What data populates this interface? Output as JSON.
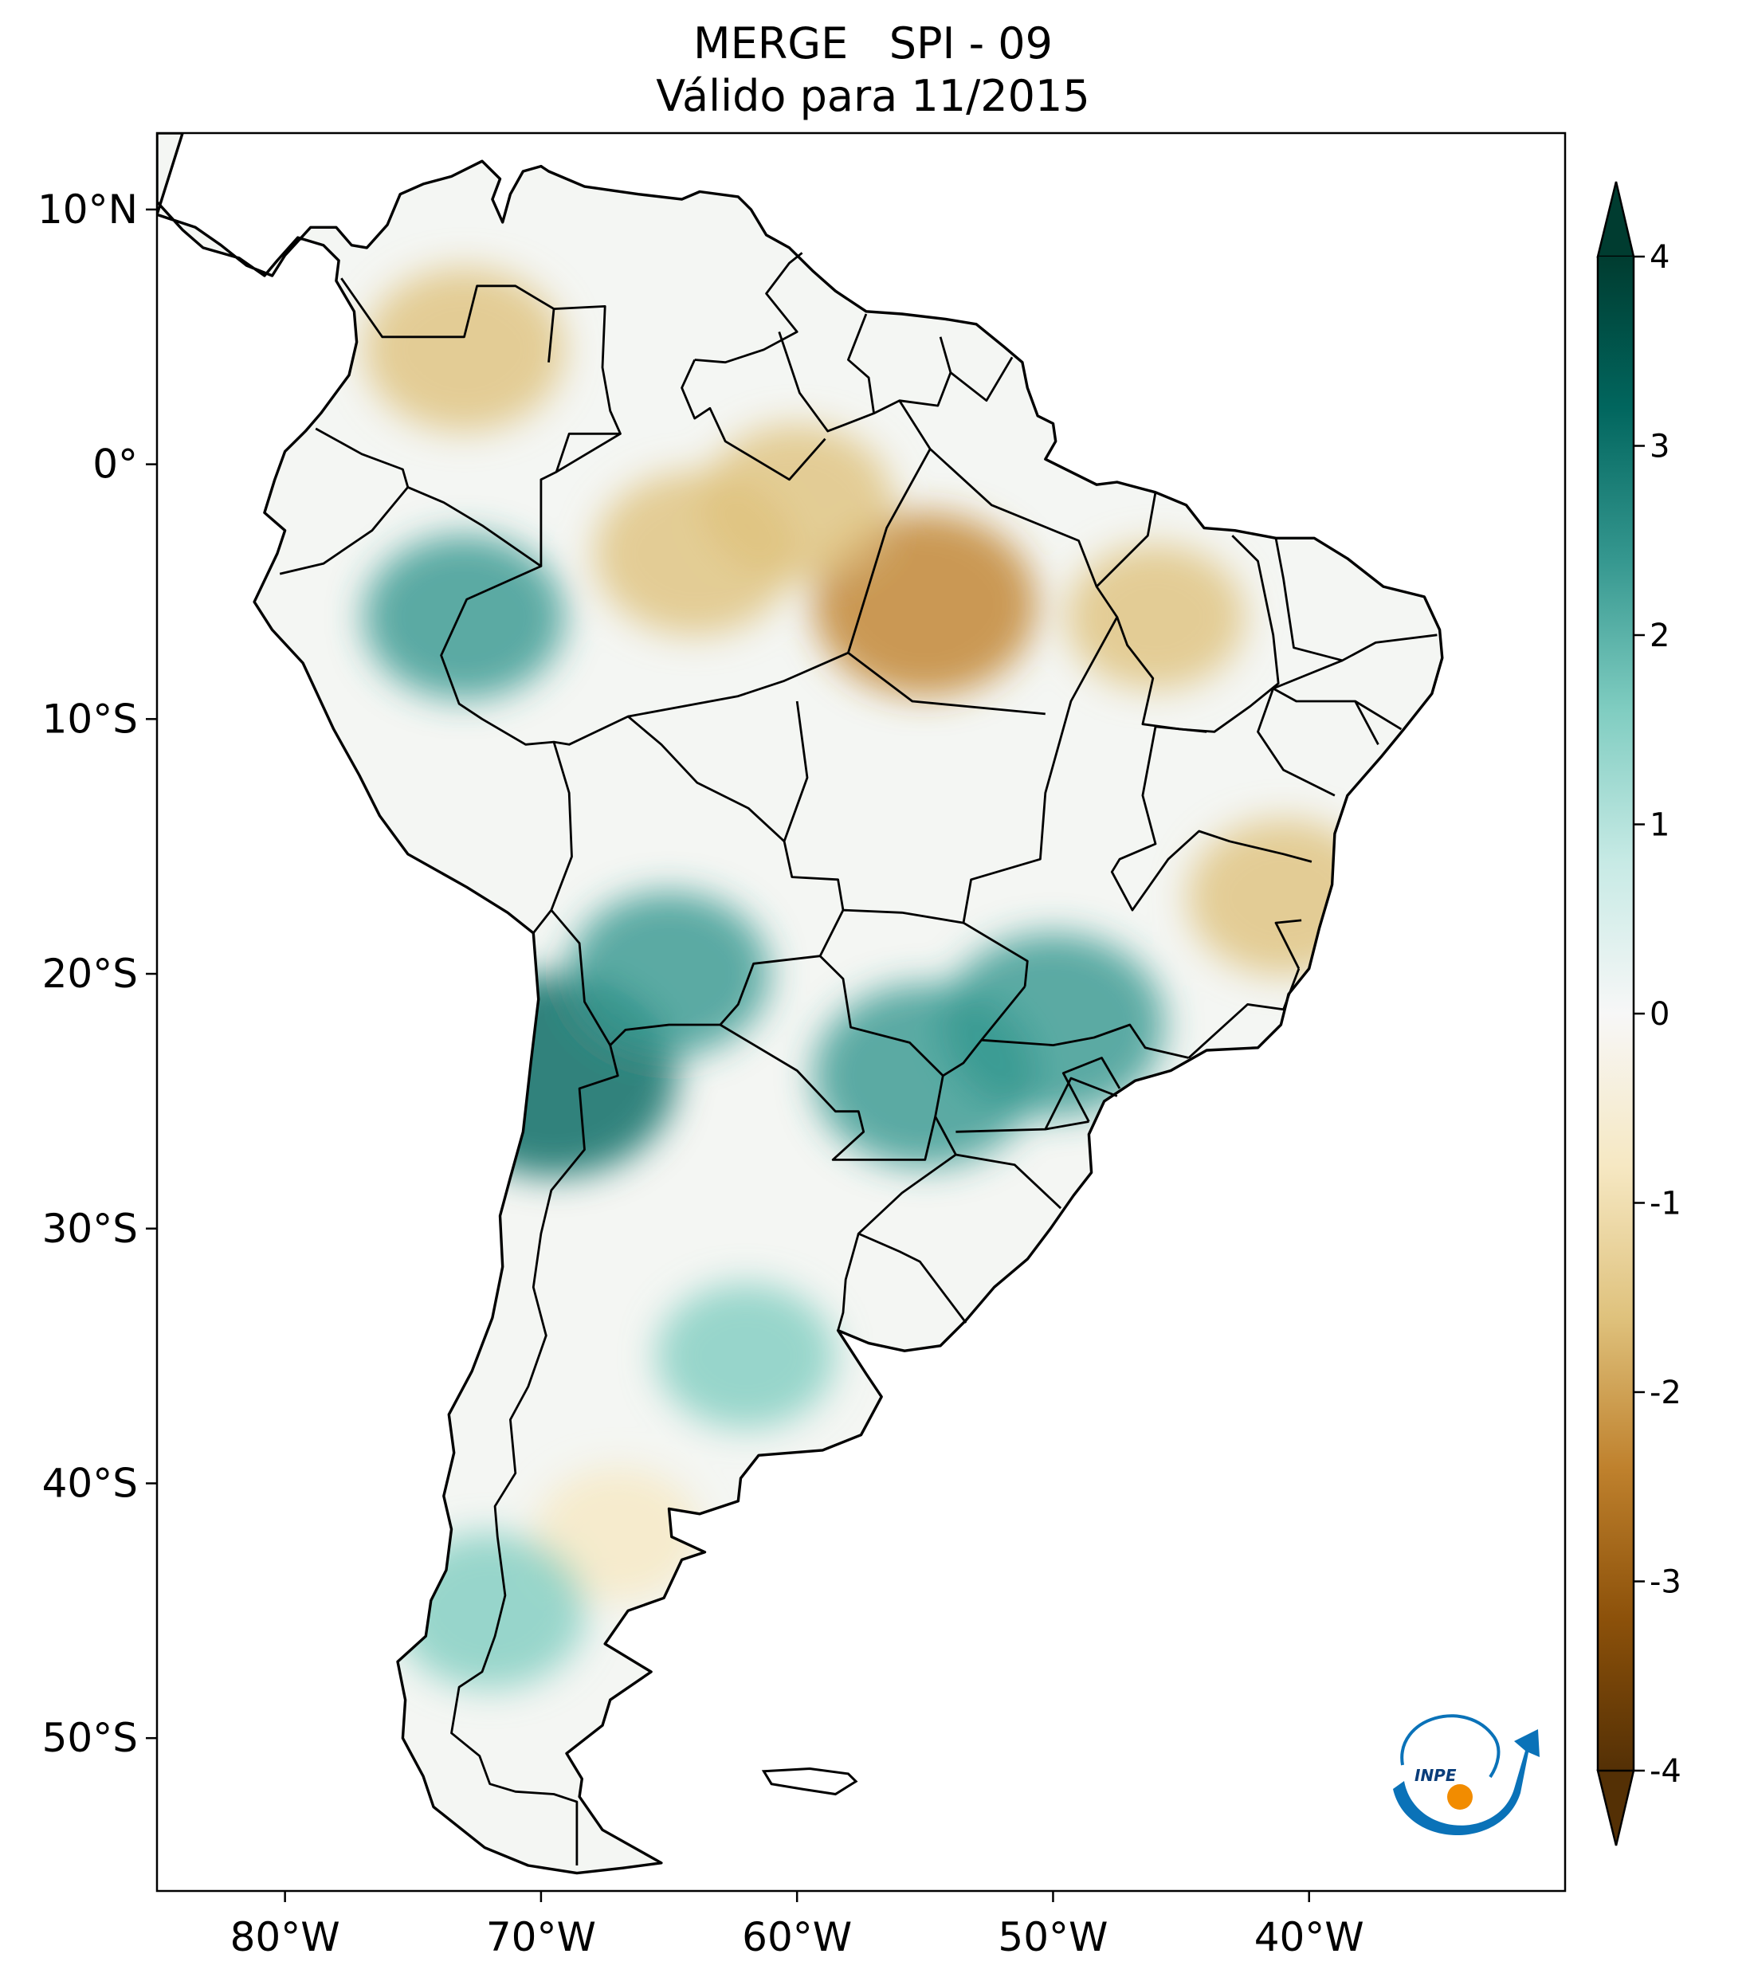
{
  "title": {
    "line1": "MERGE   SPI - 09",
    "line2": "Válido para 11/2015"
  },
  "map": {
    "region": "South America",
    "projection": "PlateCarree",
    "lon_range": [
      -85,
      -30
    ],
    "lat_range": [
      -56,
      13
    ],
    "lon_ticks": [
      -80,
      -70,
      -60,
      -50,
      -40
    ],
    "lon_tick_labels": [
      "80°W",
      "70°W",
      "60°W",
      "50°W",
      "40°W"
    ],
    "lat_ticks": [
      10,
      0,
      -10,
      -20,
      -30,
      -40,
      -50
    ],
    "lat_tick_labels": [
      "10°N",
      "0°",
      "10°S",
      "20°S",
      "30°S",
      "40°S",
      "50°S"
    ],
    "field": "SPI (9-month)",
    "dry_areas": [
      {
        "lon": -73,
        "lat": 4.5,
        "spi": -2.0
      },
      {
        "lon": -64,
        "lat": -3.5,
        "spi": -2.0
      },
      {
        "lon": -55,
        "lat": -5.5,
        "spi": -2.5
      },
      {
        "lon": -60,
        "lat": -1.5,
        "spi": -1.8
      },
      {
        "lon": -46,
        "lat": -6,
        "spi": -1.5
      },
      {
        "lon": -41,
        "lat": -17,
        "spi": -1.8
      },
      {
        "lon": -67,
        "lat": -42,
        "spi": -1.2
      }
    ],
    "wet_areas": [
      {
        "lon": -69.5,
        "lat": -24,
        "spi": 3.0
      },
      {
        "lon": -65,
        "lat": -20,
        "spi": 2.0
      },
      {
        "lon": -55,
        "lat": -24,
        "spi": 2.5
      },
      {
        "lon": -50,
        "lat": -22,
        "spi": 2.5
      },
      {
        "lon": -73,
        "lat": -6,
        "spi": 2.0
      },
      {
        "lon": -72,
        "lat": -45,
        "spi": 1.8
      },
      {
        "lon": -62,
        "lat": -35,
        "spi": 1.5
      }
    ]
  },
  "colorbar": {
    "cmap": "BrBG",
    "vmin": -4,
    "vmax": 4,
    "extend": "both",
    "ticks": [
      4,
      3,
      2,
      1,
      0,
      -1,
      -2,
      -3,
      -4
    ],
    "tick_labels": [
      "4",
      "3",
      "2",
      "1",
      "0",
      "-1",
      "-2",
      "-3",
      "-4"
    ],
    "colors": [
      "#543005",
      "#8c510a",
      "#bf812d",
      "#dfc27d",
      "#f6e8c3",
      "#f5f5f5",
      "#c7eae5",
      "#80cdc1",
      "#35978f",
      "#01665e",
      "#003c30"
    ]
  },
  "logo": {
    "text": "INPE",
    "colors": {
      "blue": "#0a72b8",
      "orange": "#f28c00"
    }
  }
}
